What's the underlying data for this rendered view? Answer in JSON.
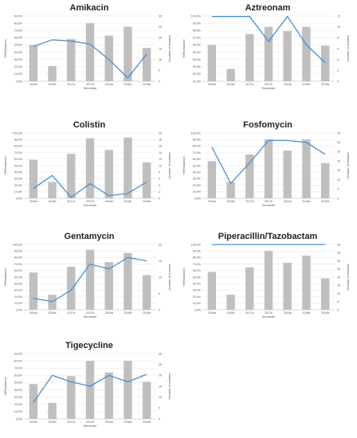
{
  "chart_data": [
    {
      "type": "bar",
      "title": "Amikacin",
      "xlabel": "Semester",
      "ylabel": "%Resistance",
      "y2label": "Number of isolates",
      "categories": [
        "2016a",
        "2016b",
        "2017a",
        "2017b",
        "2018a",
        "2018b",
        "2019a"
      ],
      "ylim": [
        0,
        90
      ],
      "yticks": [
        "0,0%",
        "10,0%",
        "20,0%",
        "30,0%",
        "40,0%",
        "50,0%",
        "60,0%",
        "70,0%",
        "80,0%",
        "90,0%"
      ],
      "y2lim": [
        0,
        30
      ],
      "y2ticks": [
        "0",
        "5",
        "10",
        "15",
        "20",
        "25",
        "30"
      ],
      "series": [
        {
          "kind": "bar",
          "color": "#bfbfbf",
          "values": [
            50,
            21,
            58,
            80,
            63,
            75,
            46
          ]
        },
        {
          "kind": "line",
          "color": "#4a8fd0",
          "values": [
            16,
            19,
            18.5,
            17,
            10,
            1.5,
            12.5
          ]
        }
      ]
    },
    {
      "type": "bar",
      "title": "Aztreonam",
      "xlabel": "Semester",
      "ylabel": "%Resistance",
      "y2label": "Number of isolates",
      "categories": [
        "2016a",
        "2016b",
        "2017a",
        "2017b",
        "2018a",
        "2018b",
        "2019a"
      ],
      "ylim": [
        91,
        100
      ],
      "yticks": [
        "91,0%",
        "92,0%",
        "93,0%",
        "94,0%",
        "95,0%",
        "96,0%",
        "97,0%",
        "98,0%",
        "99,0%",
        "100,0%"
      ],
      "y2lim": [
        0,
        12
      ],
      "y2ticks": [
        "0",
        "2",
        "4",
        "6",
        "8",
        "10",
        "12"
      ],
      "series": [
        {
          "kind": "bar",
          "color": "#bfbfbf",
          "values": [
            96,
            92.7,
            97.5,
            98.5,
            97.9,
            98.5,
            95.9
          ]
        },
        {
          "kind": "line",
          "color": "#4a8fd0",
          "values": [
            11.9,
            11.9,
            11.9,
            7.3,
            11.9,
            6.7,
            3.4
          ]
        }
      ]
    },
    {
      "type": "bar",
      "title": "Colistin",
      "xlabel": "Semester",
      "ylabel": "%Resistance",
      "y2label": "Number of isolates",
      "categories": [
        "2016a",
        "2016b",
        "2017a",
        "2017b",
        "2018a",
        "2018b",
        "2019a"
      ],
      "ylim": [
        0,
        100
      ],
      "yticks": [
        "0,0%",
        "10,0%",
        "20,0%",
        "30,0%",
        "40,0%",
        "50,0%",
        "60,0%",
        "70,0%",
        "80,0%",
        "90,0%",
        "100,0%"
      ],
      "y2lim": [
        0,
        20
      ],
      "y2ticks": [
        "0",
        "2",
        "4",
        "6",
        "8",
        "10",
        "12",
        "14",
        "16",
        "18",
        "20"
      ],
      "series": [
        {
          "kind": "bar",
          "color": "#bfbfbf",
          "values": [
            59,
            25,
            68,
            92,
            74,
            93,
            55
          ]
        },
        {
          "kind": "line",
          "color": "#4a8fd0",
          "values": [
            3,
            7,
            0.3,
            4.5,
            0.8,
            1.5,
            5
          ]
        }
      ]
    },
    {
      "type": "bar",
      "title": "Fosfomycin",
      "xlabel": "Semester",
      "ylabel": "%Resistance",
      "y2label": "Number of isolates",
      "categories": [
        "2016a",
        "2016b",
        "2017a",
        "2017b",
        "2018a",
        "2018b",
        "2019a"
      ],
      "ylim": [
        0,
        100
      ],
      "yticks": [
        "0,0%",
        "10,0%",
        "20,0%",
        "30,0%",
        "40,0%",
        "50,0%",
        "60,0%",
        "70,0%",
        "80,0%",
        "90,0%",
        "100,0%"
      ],
      "y2lim": [
        0,
        35
      ],
      "y2ticks": [
        "0",
        "5",
        "10",
        "15",
        "20",
        "25",
        "30",
        "35"
      ],
      "series": [
        {
          "kind": "bar",
          "color": "#bfbfbf",
          "values": [
            57,
            25,
            67,
            90,
            73,
            90,
            54
          ]
        },
        {
          "kind": "line",
          "color": "#4a8fd0",
          "values": [
            27.5,
            8,
            19,
            31,
            31,
            30,
            23.5
          ]
        }
      ]
    },
    {
      "type": "bar",
      "title": "Gentamycin",
      "xlabel": "Semester",
      "ylabel": "%Resistance",
      "y2label": "Number of isolates",
      "categories": [
        "2016a",
        "2016b",
        "2017a",
        "2017b",
        "2018a",
        "2018b",
        "2019a"
      ],
      "ylim": [
        0,
        100
      ],
      "yticks": [
        "0,0%",
        "10,0%",
        "20,0%",
        "30,0%",
        "40,0%",
        "50,0%",
        "60,0%",
        "70,0%",
        "80,0%",
        "90,0%",
        "100,0%"
      ],
      "y2lim": [
        0,
        20
      ],
      "y2ticks": [
        "0",
        "5",
        "10",
        "15",
        "20"
      ],
      "series": [
        {
          "kind": "bar",
          "color": "#bfbfbf",
          "values": [
            57,
            23,
            66,
            92,
            73,
            87,
            53
          ]
        },
        {
          "kind": "line",
          "color": "#4a8fd0",
          "values": [
            3.5,
            2.5,
            6,
            14,
            12.5,
            16,
            15
          ]
        }
      ]
    },
    {
      "type": "bar",
      "title": "Piperacillin/Tazobactam",
      "xlabel": "Semester",
      "ylabel": "%Resistance",
      "y2label": "Number of isolates",
      "categories": [
        "2016a",
        "2016b",
        "2017a",
        "2017b",
        "2018a",
        "2018b",
        "2019a"
      ],
      "ylim": [
        0,
        100
      ],
      "yticks": [
        "0,0%",
        "10,0%",
        "20,0%",
        "30,0%",
        "40,0%",
        "50,0%",
        "60,0%",
        "70,0%",
        "80,0%",
        "90,0%",
        "100,0%"
      ],
      "y2lim": [
        0,
        40
      ],
      "y2ticks": [
        "0",
        "5",
        "10",
        "15",
        "20",
        "25",
        "30",
        "35",
        "40"
      ],
      "series": [
        {
          "kind": "bar",
          "color": "#bfbfbf",
          "values": [
            58,
            23,
            65,
            90,
            72,
            83,
            48
          ]
        },
        {
          "kind": "line",
          "color": "#4a8fd0",
          "values": [
            40,
            40,
            40,
            40,
            40,
            40,
            40
          ]
        }
      ]
    },
    {
      "type": "bar",
      "title": "Tigecycline",
      "xlabel": "Semester",
      "ylabel": "%Resistance",
      "y2label": "Number of isolates",
      "categories": [
        "2016a",
        "2016b",
        "2017a",
        "2017b",
        "2018a",
        "2018b",
        "2019a"
      ],
      "ylim": [
        0,
        90
      ],
      "yticks": [
        "0,0%",
        "10,0%",
        "20,0%",
        "30,0%",
        "40,0%",
        "50,0%",
        "60,0%",
        "70,0%",
        "80,0%",
        "90,0%"
      ],
      "y2lim": [
        0,
        30
      ],
      "y2ticks": [
        "0",
        "5",
        "10",
        "15",
        "20",
        "25",
        "30"
      ],
      "series": [
        {
          "kind": "bar",
          "color": "#bfbfbf",
          "values": [
            48,
            22,
            59,
            80,
            64,
            80,
            51
          ]
        },
        {
          "kind": "line",
          "color": "#4a8fd0",
          "values": [
            7.5,
            20,
            17,
            15,
            20,
            17,
            20.5
          ]
        }
      ]
    }
  ]
}
